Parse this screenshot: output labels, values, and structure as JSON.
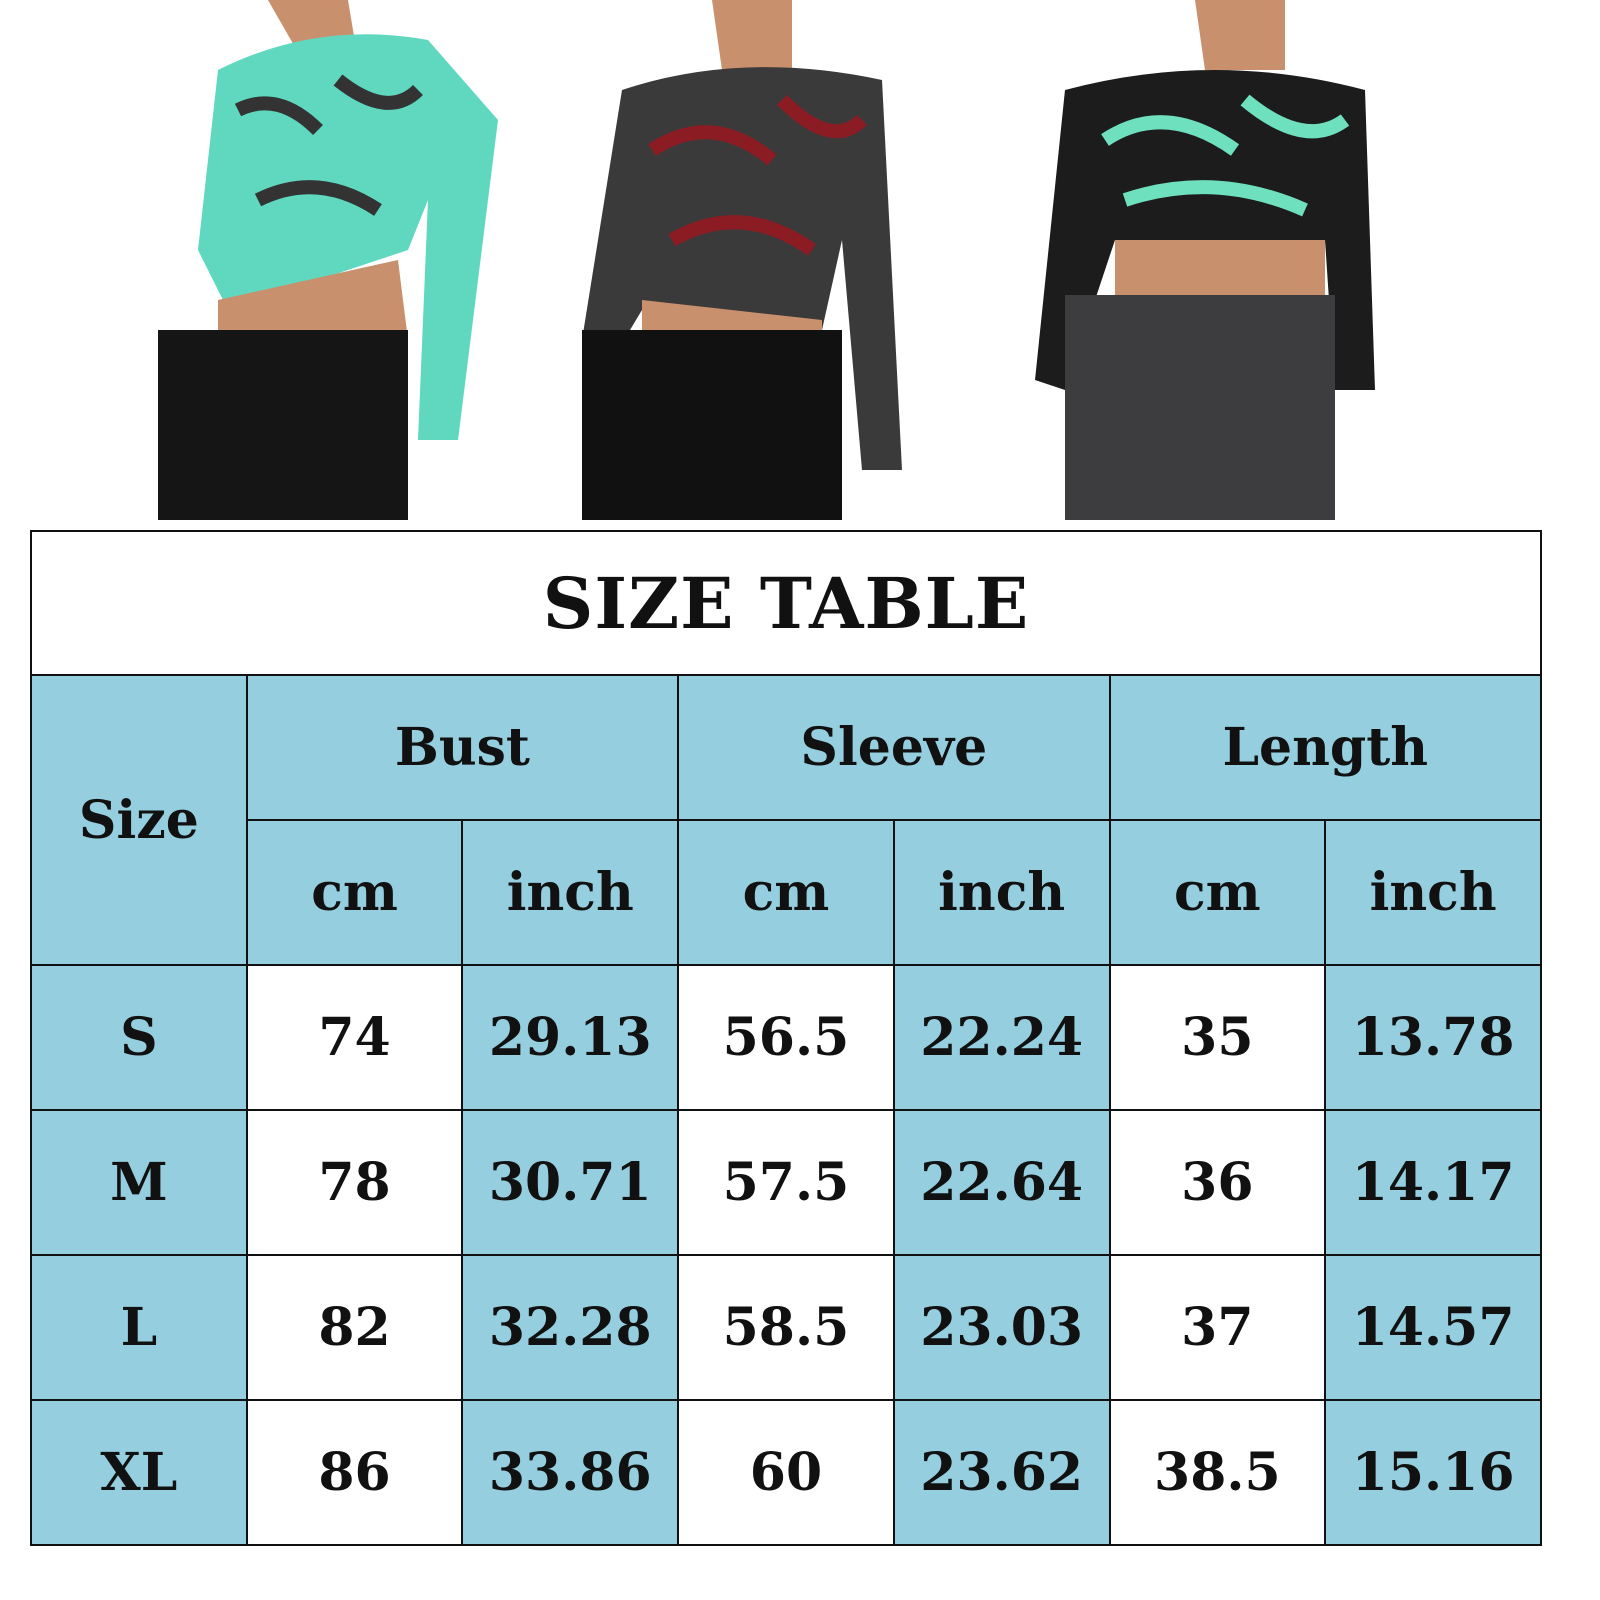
{
  "photos": [
    {
      "name": "green-dragon-print-crop-top",
      "color": "#5fd8bf"
    },
    {
      "name": "red-black-dragon-print-crop-top",
      "color": "#3a3a3a"
    },
    {
      "name": "black-mint-dragon-print-crop-top",
      "color": "#1c1c1c"
    }
  ],
  "colors": {
    "header_bg": "#95cfdf",
    "cell_white": "#ffffff",
    "border": "#111111"
  },
  "table": {
    "title": "SIZE TABLE",
    "size_header": "Size",
    "groups": [
      "Bust",
      "Sleeve",
      "Length"
    ],
    "units": [
      "cm",
      "inch",
      "cm",
      "inch",
      "cm",
      "inch"
    ],
    "rows": [
      {
        "size": "S",
        "values": [
          "74",
          "29.13",
          "56.5",
          "22.24",
          "35",
          "13.78"
        ]
      },
      {
        "size": "M",
        "values": [
          "78",
          "30.71",
          "57.5",
          "22.64",
          "36",
          "14.17"
        ]
      },
      {
        "size": "L",
        "values": [
          "82",
          "32.28",
          "58.5",
          "23.03",
          "37",
          "14.57"
        ]
      },
      {
        "size": "XL",
        "values": [
          "86",
          "33.86",
          "60",
          "23.62",
          "38.5",
          "15.16"
        ]
      }
    ]
  }
}
